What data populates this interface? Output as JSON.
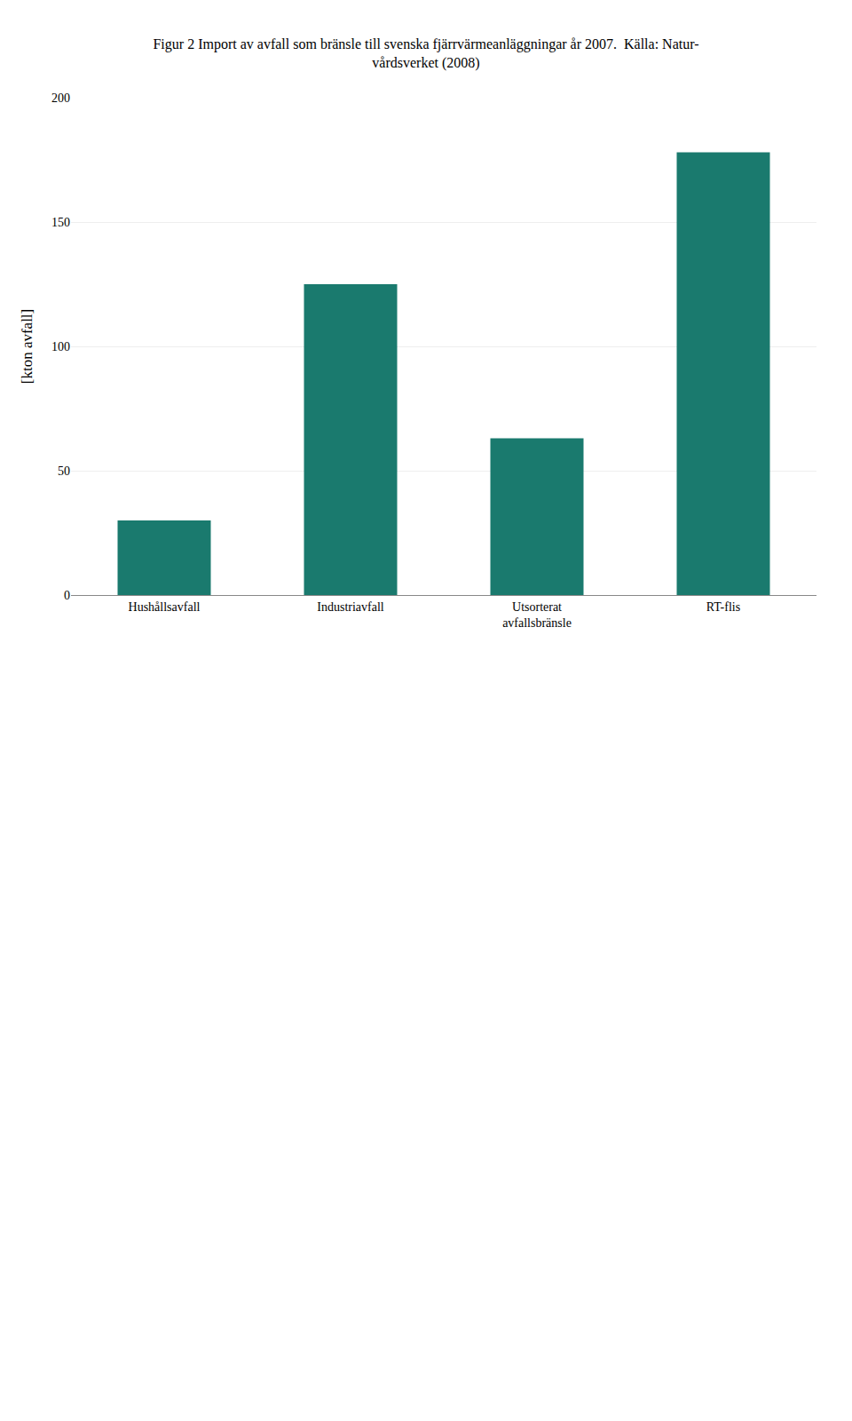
{
  "chart_data": {
    "type": "bar",
    "title": "Figur 2 Import av avfall som bränsle till svenska fjärrvärmeanläggningar år 2007.  Källa: Natur-\nvårdsverket (2008)",
    "categories": [
      "Hushållsavfall",
      "Industriavfall",
      "Utsorterat\navfallsbränsle",
      "RT-flis"
    ],
    "values": [
      30,
      125,
      63,
      178
    ],
    "color": "#1a7a6e",
    "ylabel": "[kton avfall]",
    "ylim": [
      0,
      200
    ],
    "yticks": [
      0,
      50,
      100,
      150,
      200
    ],
    "grid": true
  }
}
